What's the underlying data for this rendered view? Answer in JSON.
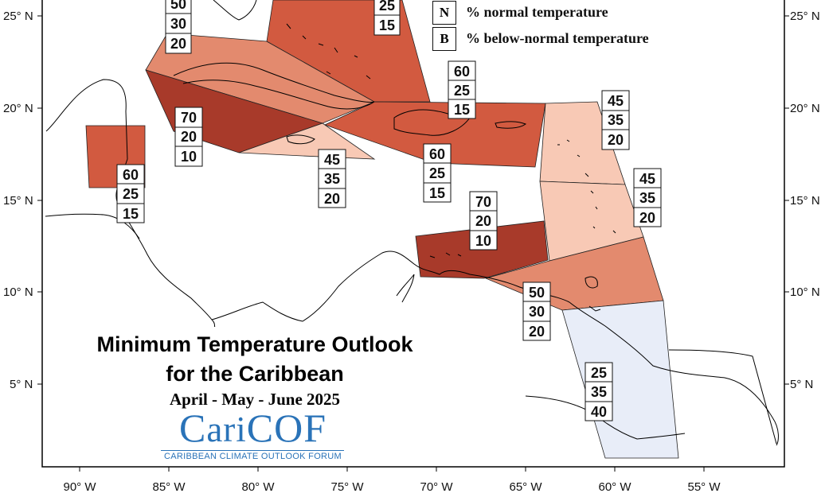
{
  "title": {
    "line1": "Minimum Temperature Outlook",
    "line2": "for the Caribbean",
    "season": "April - May - June 2025"
  },
  "logo": {
    "name": "CariCOF",
    "subtitle": "CARIBBEAN CLIMATE OUTLOOK FORUM"
  },
  "legend": [
    {
      "letter": "N",
      "label": "% normal temperature"
    },
    {
      "letter": "B",
      "label": "% below-normal temperature"
    }
  ],
  "axes": {
    "latitude_labels": [
      "25° N",
      "20° N",
      "15° N",
      "10° N",
      "5° N"
    ],
    "longitude_labels": [
      "90° W",
      "85° W",
      "80° W",
      "75° W",
      "70° W",
      "65° W",
      "60° W",
      "55° W"
    ]
  },
  "colors": {
    "prob_70": "#a83a2a",
    "prob_60": "#d25a40",
    "prob_50": "#e38a6e",
    "prob_45": "#f8c9b5",
    "below_normal_favoured": "#e8edf8",
    "land_outline": "#000000"
  },
  "forecast_regions": [
    {
      "id": "bahamas-north",
      "values": [
        "50",
        "30",
        "20"
      ]
    },
    {
      "id": "bahamas-se",
      "values": [
        "25",
        "15"
      ]
    },
    {
      "id": "hispaniola-north",
      "values": [
        "60",
        "25",
        "15"
      ]
    },
    {
      "id": "lesser-antilles-north",
      "values": [
        "45",
        "35",
        "20"
      ]
    },
    {
      "id": "cayman-west-cuba",
      "values": [
        "70",
        "20",
        "10"
      ]
    },
    {
      "id": "belize",
      "values": [
        "60",
        "25",
        "15"
      ]
    },
    {
      "id": "jamaica",
      "values": [
        "45",
        "35",
        "20"
      ]
    },
    {
      "id": "hispaniola-south",
      "values": [
        "60",
        "25",
        "15"
      ]
    },
    {
      "id": "windward-islands",
      "values": [
        "45",
        "35",
        "20"
      ]
    },
    {
      "id": "abc-islands",
      "values": [
        "70",
        "20",
        "10"
      ]
    },
    {
      "id": "trinidad-tobago",
      "values": [
        "50",
        "30",
        "20"
      ]
    },
    {
      "id": "guianas",
      "values": [
        "25",
        "35",
        "40"
      ]
    }
  ]
}
